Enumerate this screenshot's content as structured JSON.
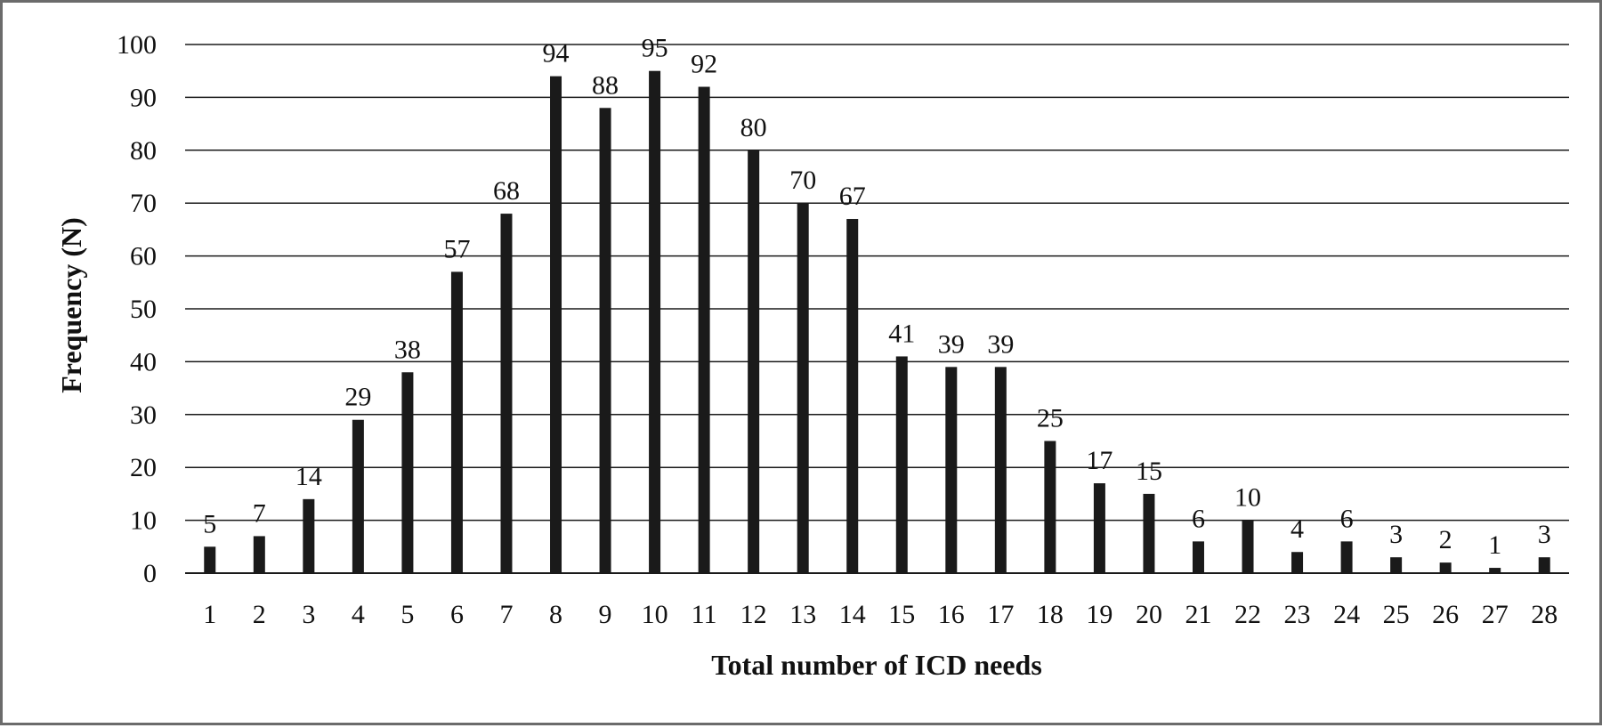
{
  "chart_data": {
    "type": "bar",
    "title": "",
    "xlabel": "Total number of ICD needs",
    "ylabel": "Frequency (N)",
    "categories": [
      "1",
      "2",
      "3",
      "4",
      "5",
      "6",
      "7",
      "8",
      "9",
      "10",
      "11",
      "12",
      "13",
      "14",
      "15",
      "16",
      "17",
      "18",
      "19",
      "20",
      "21",
      "22",
      "23",
      "24",
      "25",
      "26",
      "27",
      "28"
    ],
    "values": [
      5,
      7,
      14,
      29,
      38,
      57,
      68,
      94,
      88,
      95,
      92,
      80,
      70,
      67,
      41,
      39,
      39,
      25,
      17,
      15,
      6,
      10,
      4,
      6,
      3,
      2,
      1,
      3
    ],
    "data_labels": [
      "5",
      "7",
      "14",
      "29",
      "38",
      "57",
      "68",
      "94",
      "88",
      "95",
      "92",
      "80",
      "70",
      "67",
      "41",
      "39",
      "39",
      "25",
      "17",
      "15",
      "6",
      "10",
      "4",
      "6",
      "3",
      "2",
      "1",
      "3"
    ],
    "ylim": [
      0,
      100
    ],
    "yticks": [
      "0",
      "10",
      "20",
      "30",
      "40",
      "50",
      "60",
      "70",
      "80",
      "90",
      "100"
    ],
    "grid": "horizontal",
    "legend": "none",
    "bar_color": "#1a1a1a",
    "grid_color": "#1a1a1a"
  }
}
